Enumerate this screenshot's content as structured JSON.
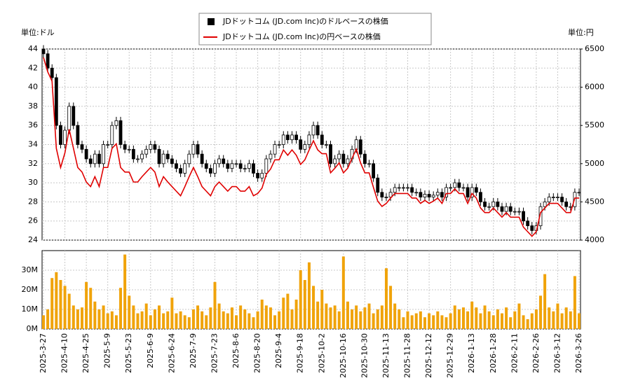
{
  "chart_data": [
    {
      "type": "candlestick",
      "ylabel": "単位:ドル",
      "y2label": "単位:円",
      "ylim": [
        24,
        44
      ],
      "yticks": [
        24,
        26,
        28,
        30,
        32,
        34,
        36,
        38,
        40,
        42,
        44
      ],
      "y2lim": [
        4000,
        6500
      ],
      "y2ticks": [
        4000,
        4500,
        5000,
        5500,
        6000,
        6500
      ],
      "grid": true,
      "legend": "top",
      "series": [
        {
          "name": "JDドットコム (JD.com Inc)のドルベースの株価",
          "color": "#000000",
          "open": [
            44,
            43.5,
            42,
            41,
            36,
            34,
            35.5,
            38,
            36,
            34,
            33.5,
            32.5,
            32,
            33,
            32,
            34,
            34,
            36,
            36.5,
            34,
            33.5,
            33.5,
            32.5,
            32.5,
            33,
            33.5,
            34,
            33.5,
            32,
            33,
            32.5,
            32,
            31.5,
            31,
            32,
            33,
            34,
            33,
            32,
            31.5,
            31,
            32,
            32.5,
            32,
            31.5,
            32,
            32,
            31.5,
            31.5,
            32,
            31,
            30.5,
            31,
            32.5,
            33,
            34,
            34,
            35,
            34.5,
            35,
            34.5,
            33.5,
            34,
            35,
            36,
            35,
            34,
            34,
            32,
            32.5,
            33,
            32,
            32.5,
            33.5,
            34.5,
            33,
            32,
            32,
            30.5,
            29,
            28.5,
            28.5,
            29,
            29.5,
            29.5,
            29.5,
            29.5,
            29,
            29,
            28.5,
            28.8,
            28.5,
            28.7,
            29,
            28.5,
            29.5,
            29.5,
            30,
            29.5,
            29.5,
            28.5,
            29.5,
            29,
            28,
            27.5,
            27.5,
            28,
            27.5,
            27,
            27.5,
            27,
            27,
            27,
            26,
            25.5,
            25,
            25.5,
            27.5,
            28,
            28.5,
            28.5,
            28.5,
            28,
            27.5,
            27.5,
            29
          ],
          "high": [
            44.4,
            43.9,
            42.4,
            41.4,
            36.4,
            35.9,
            38.4,
            38.4,
            36.4,
            34.4,
            33.9,
            32.9,
            33.4,
            33.4,
            34.4,
            34.4,
            36.4,
            36.9,
            36.9,
            34.4,
            33.9,
            33.9,
            32.9,
            33.4,
            33.9,
            34.4,
            34.4,
            33.9,
            33.4,
            33.4,
            32.9,
            32.4,
            31.9,
            32.4,
            33.4,
            34.4,
            34.4,
            33.4,
            32.4,
            31.9,
            32.4,
            32.9,
            32.9,
            32.4,
            32.4,
            32.4,
            32.4,
            31.9,
            32.4,
            32.4,
            31.4,
            31.4,
            32.9,
            33.4,
            34.4,
            34.4,
            35.4,
            35.4,
            35.4,
            35.4,
            34.9,
            34.4,
            35.4,
            36.4,
            36.4,
            35.4,
            34.4,
            34.4,
            32.9,
            33.4,
            33.4,
            32.9,
            33.9,
            34.9,
            34.9,
            33.4,
            32.4,
            32.4,
            30.9,
            29.4,
            28.9,
            29.4,
            29.9,
            29.9,
            29.9,
            29.9,
            29.9,
            29.4,
            29.4,
            29.2,
            29.2,
            29.1,
            29.4,
            29.4,
            29.9,
            29.9,
            30.4,
            30.4,
            29.9,
            29.9,
            29.9,
            29.9,
            29.4,
            28.4,
            27.9,
            28.4,
            28.4,
            27.9,
            27.9,
            27.9,
            27.4,
            27.4,
            27.4,
            26.4,
            25.9,
            25.9,
            27.9,
            28.4,
            28.9,
            28.9,
            28.9,
            28.9,
            28.4,
            27.9,
            29.4,
            29.4
          ],
          "low": [
            43.1,
            41.6,
            40.6,
            35.6,
            33.6,
            33.6,
            35.1,
            35.6,
            33.6,
            33.1,
            32.1,
            31.6,
            31.6,
            31.6,
            31.6,
            33.6,
            33.6,
            35.6,
            33.6,
            33.1,
            33.1,
            32.1,
            32.1,
            32.1,
            32.6,
            33.1,
            33.1,
            31.6,
            31.6,
            32.1,
            31.6,
            31.1,
            30.6,
            30.6,
            31.6,
            32.6,
            32.6,
            31.6,
            31.1,
            30.6,
            30.6,
            31.6,
            31.6,
            31.1,
            31.1,
            31.6,
            31.1,
            31.1,
            31.1,
            30.6,
            30.1,
            30.1,
            30.6,
            32.1,
            32.6,
            33.6,
            33.6,
            34.1,
            34.1,
            34.1,
            33.1,
            33.1,
            33.6,
            34.6,
            34.6,
            33.6,
            33.6,
            31.6,
            31.6,
            32.1,
            31.6,
            31.6,
            32.1,
            33.1,
            32.6,
            31.6,
            31.6,
            30.1,
            28.6,
            28.1,
            28.1,
            28.1,
            28.6,
            29.1,
            29.1,
            29.1,
            28.6,
            28.6,
            28.1,
            28.1,
            28.1,
            28.1,
            28.3,
            28.1,
            28.1,
            29.1,
            29.1,
            29.1,
            29.1,
            28.1,
            28.1,
            28.6,
            27.6,
            27.1,
            27.1,
            27.1,
            27.1,
            26.6,
            26.6,
            26.6,
            26.6,
            26.6,
            25.6,
            25.1,
            24.6,
            24.6,
            25.1,
            27.1,
            27.6,
            28.1,
            28.1,
            27.6,
            27.1,
            27.1,
            27.1,
            28.6
          ],
          "close": [
            43.5,
            42,
            41,
            36,
            34,
            35.5,
            38,
            36,
            34,
            33.5,
            32.5,
            32,
            33,
            32,
            34,
            34,
            36,
            36.5,
            34,
            33.5,
            33.5,
            32.5,
            32.5,
            33,
            33.5,
            34,
            33.5,
            32,
            33,
            32.5,
            32,
            31.5,
            31,
            32,
            33,
            34,
            33,
            32,
            31.5,
            31,
            32,
            32.5,
            32,
            31.5,
            32,
            32,
            31.5,
            31.5,
            32,
            31,
            30.5,
            31,
            32.5,
            33,
            34,
            34,
            35,
            34.5,
            35,
            34.5,
            33.5,
            34,
            35,
            36,
            35,
            34,
            34,
            32,
            32.5,
            33,
            32,
            32.5,
            33.5,
            34.5,
            33,
            32,
            32,
            30.5,
            29,
            28.5,
            28.5,
            29,
            29.5,
            29.5,
            29.5,
            29.5,
            29,
            29,
            28.5,
            28.8,
            28.5,
            28.7,
            29,
            28.5,
            29.5,
            29.5,
            30,
            29.5,
            29.5,
            28.5,
            29.5,
            29,
            28,
            27.5,
            27.5,
            28,
            27.5,
            27,
            27.5,
            27,
            27,
            27,
            26,
            25.5,
            25,
            25.5,
            27.5,
            28,
            28.5,
            28.5,
            28.5,
            28,
            27.5,
            27.5,
            29,
            29
          ]
        },
        {
          "name": "JDドットコム (JD.com Inc)の円ベースの株価",
          "color": "#e00000",
          "axis": "y2",
          "values": [
            6390,
            6200,
            6080,
            5200,
            4950,
            5140,
            5450,
            5200,
            4950,
            4890,
            4760,
            4700,
            4830,
            4700,
            4950,
            4950,
            5200,
            5260,
            4950,
            4890,
            4890,
            4760,
            4760,
            4830,
            4890,
            4950,
            4890,
            4700,
            4830,
            4760,
            4700,
            4640,
            4580,
            4700,
            4830,
            4950,
            4830,
            4700,
            4640,
            4580,
            4700,
            4760,
            4700,
            4640,
            4700,
            4700,
            4640,
            4640,
            4700,
            4580,
            4610,
            4680,
            4860,
            4930,
            5050,
            5050,
            5180,
            5110,
            5180,
            5110,
            4990,
            5050,
            5180,
            5300,
            5180,
            5130,
            5130,
            4880,
            4940,
            5010,
            4880,
            4940,
            5070,
            5190,
            5010,
            4880,
            4880,
            4690,
            4510,
            4440,
            4480,
            4550,
            4610,
            4610,
            4610,
            4610,
            4550,
            4550,
            4480,
            4520,
            4480,
            4510,
            4550,
            4480,
            4610,
            4610,
            4670,
            4610,
            4610,
            4480,
            4610,
            4550,
            4420,
            4360,
            4360,
            4420,
            4360,
            4300,
            4360,
            4300,
            4300,
            4300,
            4170,
            4110,
            4050,
            4110,
            4360,
            4420,
            4480,
            4480,
            4480,
            4420,
            4360,
            4360,
            4550,
            4550
          ]
        }
      ]
    },
    {
      "type": "bar",
      "color": "#f0a30a",
      "grid": true,
      "ylim": [
        0,
        40
      ],
      "yticks": [
        {
          "value": 0,
          "label": "0M"
        },
        {
          "value": 10,
          "label": "10M"
        },
        {
          "value": 20,
          "label": "20M"
        },
        {
          "value": 30,
          "label": "30M"
        }
      ],
      "categories": [
        "2025-3-27",
        null,
        null,
        null,
        null,
        "2025-4-10",
        null,
        null,
        null,
        null,
        "2025-4-25",
        null,
        null,
        null,
        null,
        "2025-5-9",
        null,
        null,
        null,
        null,
        "2025-5-23",
        null,
        null,
        null,
        null,
        "2025-6-9",
        null,
        null,
        null,
        null,
        "2025-6-24",
        null,
        null,
        null,
        null,
        "2025-7-9",
        null,
        null,
        null,
        null,
        "2025-7-23",
        null,
        null,
        null,
        null,
        "2025-8-6",
        null,
        null,
        null,
        null,
        "2025-8-20",
        null,
        null,
        null,
        null,
        "2025-9-4",
        null,
        null,
        null,
        null,
        "2025-9-18",
        null,
        null,
        null,
        null,
        "2025-10-2",
        null,
        null,
        null,
        null,
        "2025-10-16",
        null,
        null,
        null,
        null,
        "2025-10-30",
        null,
        null,
        null,
        null,
        "2025-11-13",
        null,
        null,
        null,
        null,
        "2025-11-28",
        null,
        null,
        null,
        null,
        "2025-12-12",
        null,
        null,
        null,
        null,
        "2025-12-29",
        null,
        null,
        null,
        null,
        "2026-1-13",
        null,
        null,
        null,
        null,
        "2026-1-28",
        null,
        null,
        null,
        null,
        "2026-2-11",
        null,
        null,
        null,
        null,
        "2026-2-26",
        null,
        null,
        null,
        null,
        "2026-3-12",
        null,
        null,
        null,
        null,
        "2026-3-26"
      ],
      "values": [
        7,
        10,
        26,
        29,
        25,
        22,
        18,
        12,
        10,
        11,
        24,
        21,
        14,
        10,
        12,
        8,
        9,
        7,
        21,
        38,
        17,
        12,
        8,
        9,
        13,
        7,
        10,
        12,
        8,
        9,
        16,
        8,
        9,
        7,
        6,
        10,
        12,
        9,
        7,
        11,
        24,
        13,
        9,
        8,
        11,
        7,
        12,
        10,
        8,
        6,
        9,
        15,
        12,
        11,
        7,
        9,
        16,
        18,
        10,
        15,
        30,
        25,
        34,
        22,
        14,
        20,
        13,
        11,
        12,
        9,
        37,
        14,
        10,
        12,
        9,
        11,
        13,
        8,
        10,
        12,
        31,
        22,
        13,
        10,
        6,
        9,
        7,
        8,
        9,
        6,
        8,
        7,
        9,
        7,
        6,
        8,
        12,
        10,
        11,
        9,
        14,
        11,
        8,
        12,
        9,
        7,
        10,
        8,
        11,
        6,
        9,
        13,
        7,
        5,
        8,
        10,
        17,
        28,
        11,
        9,
        13,
        8,
        11,
        9,
        27,
        8
      ]
    }
  ]
}
